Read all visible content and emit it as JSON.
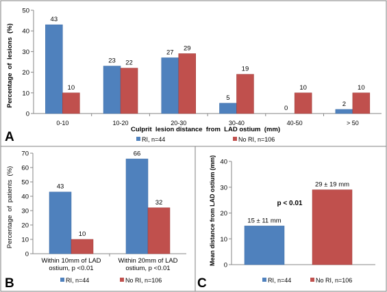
{
  "colors": {
    "ri": "#4F81BD",
    "no_ri": "#C0504D",
    "axis": "#868686",
    "frame": "#7F7F7F",
    "bar_edge_ri": "#3A6AA5",
    "bar_edge_no_ri": "#9E3B39"
  },
  "panel_letters": {
    "a": "A",
    "b": "B",
    "c": "C"
  },
  "legend": {
    "ri": "RI, n=44",
    "no_ri": "No RI, n=106"
  },
  "chart_data": [
    {
      "id": "A",
      "type": "bar",
      "categories": [
        "0-10",
        "10-20",
        "20-30",
        "30-40",
        "40-50",
        "> 50"
      ],
      "series": [
        {
          "name": "RI, n=44",
          "values": [
            43,
            23,
            27,
            5,
            0,
            2
          ]
        },
        {
          "name": "No RI, n=106",
          "values": [
            10,
            22,
            29,
            19,
            10,
            10
          ]
        }
      ],
      "xlabel": "Culprit  lesion distance  from  LAD ostium  (mm)",
      "ylabel": "Percentage  of  lesions  (%)",
      "ylim": [
        0,
        50
      ],
      "yticks": [
        0,
        10,
        20,
        30,
        40,
        50
      ],
      "legend_position": "bottom",
      "grid": false
    },
    {
      "id": "B",
      "type": "bar",
      "categories": [
        [
          "Within 10mm of LAD",
          "ostium,  p <0.01"
        ],
        [
          "Within 20mm of LAD",
          "ostium, p <0.01"
        ]
      ],
      "series": [
        {
          "name": "RI, n=44",
          "values": [
            43,
            66
          ]
        },
        {
          "name": "No RI, n=106",
          "values": [
            10,
            32
          ]
        }
      ],
      "ylabel": "Percentage  of  patients  (%)",
      "ylim": [
        0,
        70
      ],
      "yticks": [
        0,
        10,
        20,
        30,
        40,
        50,
        60,
        70
      ],
      "legend_position": "bottom",
      "grid": false
    },
    {
      "id": "C",
      "type": "bar",
      "categories": [
        "RI, n=44",
        "No RI, n=106"
      ],
      "values": [
        15,
        29
      ],
      "value_labels": [
        "15 ± 11 mm",
        "29 ± 19 mm"
      ],
      "annotation": "p < 0.01",
      "ylabel": "Mean distance from LAD ostium (mm)",
      "ylim": [
        0,
        40
      ],
      "yticks": [
        0,
        10,
        20,
        30,
        40
      ],
      "legend_position": "bottom",
      "grid": false
    }
  ]
}
